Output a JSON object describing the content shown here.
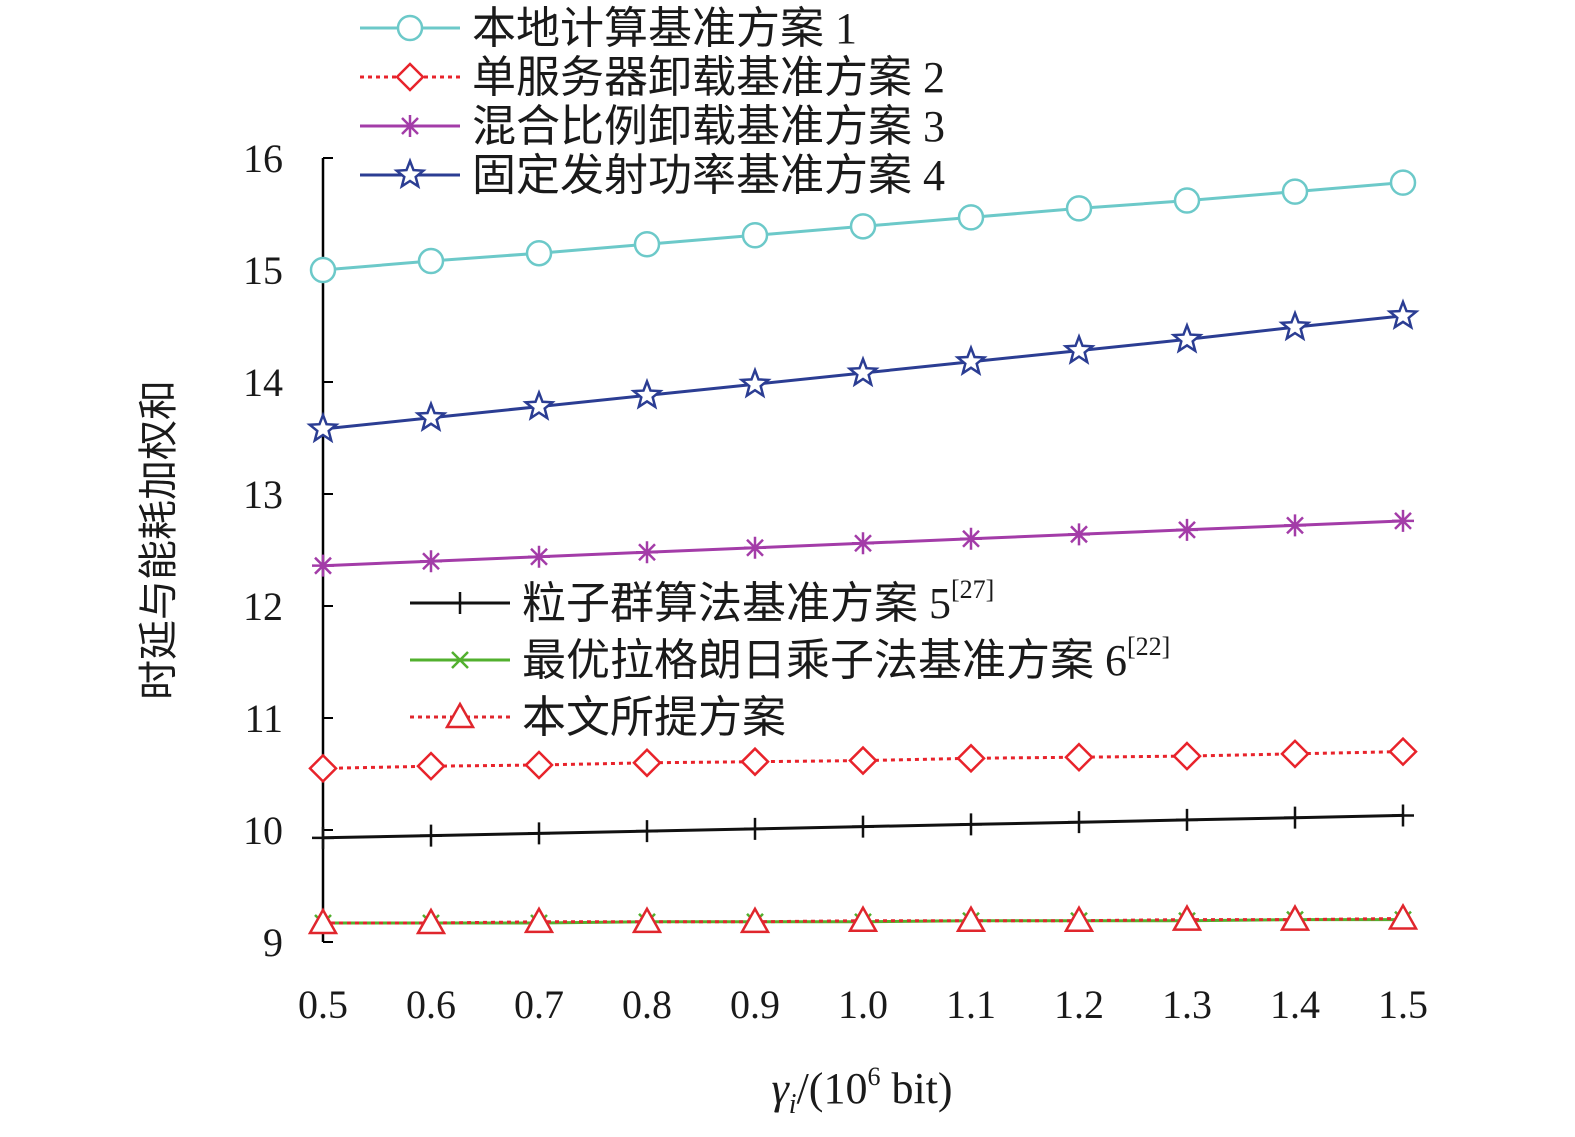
{
  "chart_data": {
    "type": "line",
    "x": [
      0.5,
      0.6,
      0.7,
      0.8,
      0.9,
      1.0,
      1.1,
      1.2,
      1.3,
      1.4,
      1.5
    ],
    "x_tick_labels": [
      "0.5",
      "0.6",
      "0.7",
      "0.8",
      "0.9",
      "1.0",
      "1.1",
      "1.2",
      "1.3",
      "1.4",
      "1.5"
    ],
    "y_tick_labels": [
      "9",
      "10",
      "11",
      "12",
      "13",
      "14",
      "15",
      "16"
    ],
    "xlim": [
      0.5,
      1.5
    ],
    "ylim": [
      9,
      16
    ],
    "xlabel": {
      "symbol": "γ",
      "sub": "i",
      "mid": "/(10",
      "sup": "6",
      "tail": " bit)"
    },
    "ylabel": "时延与能耗加权和",
    "series": [
      {
        "name": "本地计算基准方案",
        "num": "1",
        "ref": "",
        "color": "#6cc9c9",
        "marker": "circle",
        "dash": "solid",
        "values": [
          15.0,
          15.08,
          15.15,
          15.23,
          15.31,
          15.39,
          15.47,
          15.55,
          15.62,
          15.7,
          15.78
        ]
      },
      {
        "name": "单服务器卸载基准方案",
        "num": "2",
        "ref": "",
        "color": "#e8232b",
        "marker": "diamond",
        "dash": "dotted",
        "values": [
          10.55,
          10.57,
          10.58,
          10.6,
          10.61,
          10.62,
          10.64,
          10.65,
          10.66,
          10.68,
          10.7
        ]
      },
      {
        "name": "混合比例卸载基准方案",
        "num": "3",
        "ref": "",
        "color": "#a33ca8",
        "marker": "asterisk",
        "dash": "solid",
        "values": [
          12.36,
          12.4,
          12.44,
          12.48,
          12.52,
          12.56,
          12.6,
          12.64,
          12.68,
          12.72,
          12.76
        ]
      },
      {
        "name": "固定发射功率基准方案",
        "num": "4",
        "ref": "",
        "color": "#2b3d93",
        "marker": "star",
        "dash": "solid",
        "values": [
          13.58,
          13.68,
          13.78,
          13.88,
          13.98,
          14.08,
          14.18,
          14.28,
          14.38,
          14.49,
          14.59
        ]
      },
      {
        "name": "粒子群算法基准方案",
        "num": "5",
        "ref": "[27]",
        "color": "#111111",
        "marker": "plus",
        "dash": "solid",
        "values": [
          9.93,
          9.95,
          9.97,
          9.99,
          10.01,
          10.03,
          10.05,
          10.07,
          10.09,
          10.11,
          10.13
        ]
      },
      {
        "name": "最优拉格朗日乘子法基准方案",
        "num": "6",
        "ref": "[22]",
        "color": "#52b02e",
        "marker": "cross",
        "dash": "solid",
        "values": [
          9.17,
          9.17,
          9.17,
          9.18,
          9.18,
          9.18,
          9.19,
          9.19,
          9.19,
          9.2,
          9.2
        ]
      },
      {
        "name": "本文所提方案",
        "num": "",
        "ref": "",
        "color": "#e0262d",
        "marker": "triangle",
        "dash": "dotted",
        "values": [
          9.17,
          9.17,
          9.18,
          9.18,
          9.18,
          9.19,
          9.19,
          9.19,
          9.2,
          9.2,
          9.21
        ]
      }
    ],
    "legend_groups": [
      {
        "placement": "top",
        "series": [
          0,
          1,
          2,
          3
        ]
      },
      {
        "placement": "middle",
        "series": [
          4,
          5,
          6
        ]
      }
    ]
  }
}
